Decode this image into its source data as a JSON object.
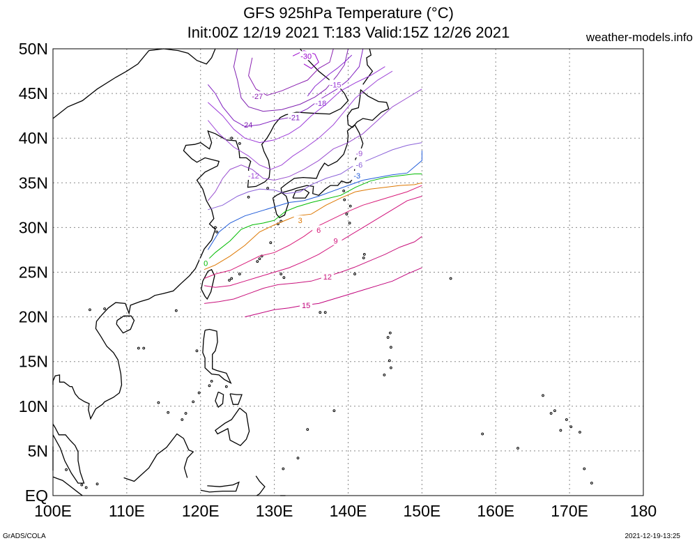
{
  "title": {
    "line1": "GFS 925hPa Temperature (°C)",
    "line2": "Init:00Z 12/19 2021 T:183 Valid:15Z 12/26 2021"
  },
  "site": "weather-models.info",
  "footer": {
    "left": "GrADS/COLA",
    "right": "2021-12-19-13:25"
  },
  "map": {
    "lon_range": [
      100,
      180
    ],
    "lat_range": [
      0,
      50
    ],
    "x_ticks": [
      {
        "lon": 100,
        "label": "100E"
      },
      {
        "lon": 110,
        "label": "110E"
      },
      {
        "lon": 120,
        "label": "120E"
      },
      {
        "lon": 130,
        "label": "130E"
      },
      {
        "lon": 140,
        "label": "140E"
      },
      {
        "lon": 150,
        "label": "150E"
      },
      {
        "lon": 160,
        "label": "160E"
      },
      {
        "lon": 170,
        "label": "170E"
      },
      {
        "lon": 180,
        "label": "180"
      }
    ],
    "y_ticks": [
      {
        "lat": 0,
        "label": "EQ"
      },
      {
        "lat": 5,
        "label": "5N"
      },
      {
        "lat": 10,
        "label": "10N"
      },
      {
        "lat": 15,
        "label": "15N"
      },
      {
        "lat": 20,
        "label": "20N"
      },
      {
        "lat": 25,
        "label": "25N"
      },
      {
        "lat": 30,
        "label": "30N"
      },
      {
        "lat": 35,
        "label": "35N"
      },
      {
        "lat": 40,
        "label": "40N"
      },
      {
        "lat": 45,
        "label": "45N"
      },
      {
        "lat": 50,
        "label": "50N"
      }
    ],
    "grid": "dotted",
    "colors": {
      "coast": "#000000",
      "t_minus30": "#9900cc",
      "t_minus27": "#8a1fb0",
      "t_minus24": "#7f1fb0",
      "t_minus21": "#8020c0",
      "t_minus18": "#8a2ad0",
      "t_minus15": "#9b38d8",
      "t_minus12": "#a048d8",
      "t_minus9": "#9a50d0",
      "t_minus6": "#8a60d8",
      "t_minus3": "#1e5ad8",
      "t_0": "#00bb00",
      "t_3": "#dd7700",
      "t_6": "#d81b78",
      "t_9": "#d0107a",
      "t_12": "#c8107a",
      "t_15": "#c0007a"
    },
    "contours": [
      {
        "value": -30,
        "label": "-30",
        "color_key": "t_minus30",
        "points": [
          [
            132.5,
            49.2
          ],
          [
            134,
            49.8
          ],
          [
            135.5,
            49.4
          ],
          [
            136,
            48.5
          ],
          [
            135,
            47.8
          ],
          [
            134,
            48.3
          ]
        ],
        "label_at": [
          134.3,
          49.2
        ]
      },
      {
        "value": -27,
        "label": "-27",
        "color_key": "t_minus27",
        "points": [
          [
            127,
            49
          ],
          [
            126.5,
            47
          ],
          [
            127.5,
            45.5
          ],
          [
            129,
            44.8
          ],
          [
            131,
            45.3
          ],
          [
            133,
            46
          ],
          [
            134.5,
            46.5
          ],
          [
            136,
            47.8
          ],
          [
            137.5,
            48.5
          ],
          [
            138,
            50
          ]
        ],
        "label_at": [
          127.7,
          44.7
        ]
      },
      {
        "value": -24,
        "label": "-24",
        "color_key": "t_minus24",
        "points": [
          [
            125,
            50
          ],
          [
            124.5,
            48
          ],
          [
            125,
            46.5
          ],
          [
            125.5,
            44.5
          ],
          [
            126.5,
            43.5
          ],
          [
            128.5,
            43
          ],
          [
            131,
            43.2
          ],
          [
            133.5,
            43.8
          ],
          [
            135.5,
            44.6
          ],
          [
            137,
            45.5
          ],
          [
            138.5,
            47
          ],
          [
            139.5,
            48.2
          ],
          [
            140,
            50
          ]
        ],
        "label_at": [
          126.3,
          41.5
        ]
      },
      {
        "value": -21,
        "label": "-21",
        "color_key": "t_minus21",
        "points": [
          [
            121,
            46
          ],
          [
            122,
            45
          ],
          [
            123,
            43.5
          ],
          [
            124.5,
            42
          ],
          [
            126,
            41.3
          ],
          [
            128,
            41.5
          ],
          [
            130,
            42
          ],
          [
            132,
            42.3
          ],
          [
            134.5,
            43.3
          ],
          [
            136.5,
            44.5
          ],
          [
            138.5,
            45.5
          ],
          [
            140,
            46.5
          ],
          [
            141.5,
            48
          ],
          [
            142,
            50
          ]
        ],
        "label_at": [
          132.7,
          42.3
        ]
      },
      {
        "value": -18,
        "label": "-18",
        "color_key": "t_minus18",
        "points": [
          [
            134.5,
            44.7
          ],
          [
            135.5,
            45.8
          ],
          [
            136.5,
            46.5
          ],
          [
            137.5,
            47.2
          ],
          [
            138.5,
            47.8
          ],
          [
            139.5,
            48.5
          ],
          [
            140.5,
            49.3
          ]
        ],
        "label_at": [
          136.3,
          43.9
        ]
      },
      {
        "value": -15,
        "label": "-15",
        "color_key": "t_minus15",
        "points": [
          [
            121,
            44
          ],
          [
            123,
            42.5
          ],
          [
            124.5,
            41
          ],
          [
            126,
            40
          ],
          [
            128,
            39.5
          ],
          [
            130,
            39.8
          ],
          [
            132,
            40.5
          ],
          [
            133.5,
            41.3
          ],
          [
            135,
            42.5
          ],
          [
            137,
            43.8
          ],
          [
            139,
            45.3
          ],
          [
            141,
            46.2
          ],
          [
            143,
            47
          ],
          [
            144,
            47.5
          ],
          [
            145,
            48
          ]
        ],
        "label_at": [
          138.3,
          46
        ]
      },
      {
        "value": -12,
        "label": "-12",
        "color_key": "t_minus12",
        "points": [
          [
            121,
            42
          ],
          [
            122.5,
            40.5
          ],
          [
            124.5,
            39
          ],
          [
            126.5,
            38
          ],
          [
            128,
            37
          ],
          [
            129.5,
            36.5
          ],
          [
            131,
            37
          ],
          [
            132.5,
            38
          ],
          [
            134,
            38.8
          ],
          [
            136,
            40
          ],
          [
            138,
            41.5
          ],
          [
            139.5,
            43
          ],
          [
            141,
            44.5
          ],
          [
            142.5,
            45.5
          ],
          [
            144,
            46.5
          ],
          [
            146,
            47.5
          ]
        ],
        "label_at": [
          127.2,
          35.8
        ]
      },
      {
        "value": -9,
        "label": "-9",
        "color_key": "t_minus9",
        "points": [
          [
            121,
            33
          ],
          [
            122,
            34
          ],
          [
            123,
            35.5
          ],
          [
            124,
            36.5
          ],
          [
            125.5,
            37
          ],
          [
            127,
            36.5
          ],
          [
            128.5,
            35.5
          ],
          [
            130,
            35.3
          ],
          [
            132,
            35.7
          ],
          [
            134,
            36.5
          ],
          [
            136,
            37.5
          ],
          [
            138,
            38.8
          ],
          [
            140,
            39.5
          ],
          [
            142,
            40.5
          ],
          [
            144,
            42
          ],
          [
            146,
            43.5
          ],
          [
            148,
            44.5
          ],
          [
            150,
            45.5
          ]
        ],
        "label_at": [
          141.5,
          38.3
        ]
      },
      {
        "value": -6,
        "label": "-6",
        "color_key": "t_minus6",
        "points": [
          [
            121,
            32
          ],
          [
            123,
            32.5
          ],
          [
            125,
            33.5
          ],
          [
            126.5,
            34
          ],
          [
            128,
            34.3
          ],
          [
            130,
            34.2
          ],
          [
            131.5,
            33.8
          ],
          [
            133.5,
            34
          ],
          [
            135,
            34.8
          ],
          [
            137,
            35.5
          ],
          [
            139,
            36
          ],
          [
            140.5,
            36.8
          ],
          [
            142,
            37.3
          ],
          [
            144,
            38
          ],
          [
            146,
            38.7
          ],
          [
            148,
            39.2
          ],
          [
            150,
            39.5
          ]
        ],
        "label_at": [
          141.5,
          37
        ]
      },
      {
        "value": -3,
        "label": "-3",
        "color_key": "t_minus3",
        "points": [
          [
            121,
            27.5
          ],
          [
            122.5,
            29.5
          ],
          [
            124,
            30.5
          ],
          [
            126,
            31.3
          ],
          [
            128,
            31.8
          ],
          [
            130,
            32.3
          ],
          [
            132,
            32.8
          ],
          [
            134,
            33
          ],
          [
            136,
            33.5
          ],
          [
            138,
            34.1
          ],
          [
            140,
            34.7
          ],
          [
            142,
            35.3
          ],
          [
            144,
            35.6
          ],
          [
            146,
            35.9
          ],
          [
            148,
            36.1
          ],
          [
            150,
            37.5
          ],
          [
            150,
            38.6
          ]
        ],
        "label_at": [
          141.2,
          35.8
        ]
      },
      {
        "value": 0,
        "label": "0",
        "color_key": "t_0",
        "points": [
          [
            120.5,
            26
          ],
          [
            122,
            27.2
          ],
          [
            124,
            28.5
          ],
          [
            125.5,
            29.8
          ],
          [
            127,
            30.3
          ],
          [
            128.5,
            30.5
          ],
          [
            130,
            30.8
          ],
          [
            131.5,
            31.8
          ],
          [
            133,
            32.3
          ],
          [
            135,
            32.8
          ],
          [
            137,
            33.2
          ],
          [
            139,
            33.6
          ],
          [
            141,
            34.5
          ],
          [
            143,
            35.2
          ],
          [
            145,
            35.6
          ],
          [
            147,
            35.8
          ],
          [
            149,
            36
          ],
          [
            150,
            36
          ]
        ],
        "label_at": [
          120.7,
          26
        ]
      },
      {
        "value": 3,
        "label": "3",
        "color_key": "t_3",
        "points": [
          [
            120.5,
            25.3
          ],
          [
            122,
            25.8
          ],
          [
            124,
            26.8
          ],
          [
            126,
            28
          ],
          [
            128,
            29.5
          ],
          [
            130,
            30.3
          ],
          [
            131.5,
            30.8
          ],
          [
            133,
            31.3
          ],
          [
            135,
            31.5
          ],
          [
            137,
            32.5
          ],
          [
            139,
            33.3
          ],
          [
            141,
            34
          ],
          [
            143,
            34.3
          ],
          [
            145,
            34.5
          ],
          [
            147,
            34.7
          ],
          [
            149,
            34.8
          ],
          [
            150,
            35
          ]
        ],
        "label_at": [
          133.5,
          30.8
        ]
      },
      {
        "value": 6,
        "label": "6",
        "color_key": "t_6",
        "points": [
          [
            120.5,
            24.3
          ],
          [
            122,
            24.8
          ],
          [
            124,
            25.2
          ],
          [
            126,
            26
          ],
          [
            128,
            26.8
          ],
          [
            130,
            27.2
          ],
          [
            132,
            28
          ],
          [
            134,
            29
          ],
          [
            136,
            30.2
          ],
          [
            138,
            31
          ],
          [
            140,
            31.8
          ],
          [
            142,
            32.5
          ],
          [
            144,
            33
          ],
          [
            146,
            33.5
          ],
          [
            148,
            34
          ],
          [
            150,
            34.7
          ]
        ],
        "label_at": [
          136,
          29.7
        ]
      },
      {
        "value": 9,
        "label": "9",
        "color_key": "t_9",
        "points": [
          [
            120.5,
            23.5
          ],
          [
            122,
            23.3
          ],
          [
            124,
            23.5
          ],
          [
            126,
            24
          ],
          [
            128,
            24.5
          ],
          [
            130,
            25
          ],
          [
            132,
            25.5
          ],
          [
            134,
            26.2
          ],
          [
            136,
            27
          ],
          [
            138,
            28
          ],
          [
            140,
            29
          ],
          [
            142,
            30
          ],
          [
            144,
            31
          ],
          [
            146,
            32
          ],
          [
            148,
            33
          ],
          [
            150,
            33.5
          ]
        ],
        "label_at": [
          138.3,
          28.5
        ]
      },
      {
        "value": 12,
        "label": "12",
        "color_key": "t_12",
        "points": [
          [
            120.5,
            21.5
          ],
          [
            122.5,
            21.7
          ],
          [
            124.5,
            22
          ],
          [
            126.5,
            22.6
          ],
          [
            128.5,
            23.2
          ],
          [
            130.5,
            23.6
          ],
          [
            133,
            23.8
          ],
          [
            135,
            24
          ],
          [
            137,
            24.5
          ],
          [
            139,
            25
          ],
          [
            141,
            25.6
          ],
          [
            143,
            26.3
          ],
          [
            145,
            27
          ],
          [
            147,
            27.8
          ],
          [
            149,
            28.4
          ],
          [
            150,
            29
          ]
        ],
        "label_at": [
          137.2,
          24.5
        ]
      },
      {
        "value": 15,
        "label": "15",
        "color_key": "t_15",
        "points": [
          [
            126,
            20
          ],
          [
            128,
            20.4
          ],
          [
            130,
            20.8
          ],
          [
            132,
            21
          ],
          [
            134,
            21.3
          ],
          [
            136,
            21.5
          ],
          [
            138,
            22
          ],
          [
            140,
            22.5
          ],
          [
            142,
            23
          ],
          [
            144,
            23.5
          ],
          [
            146,
            24
          ],
          [
            148,
            24.8
          ],
          [
            150,
            25.5
          ]
        ],
        "label_at": [
          134.3,
          21.3
        ]
      }
    ]
  }
}
